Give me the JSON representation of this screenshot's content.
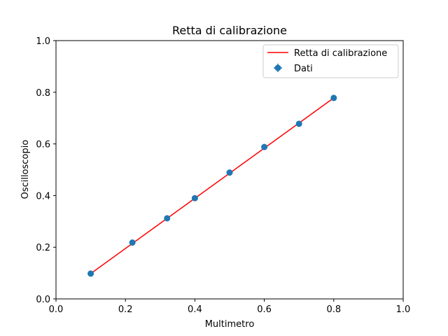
{
  "chart_data": {
    "type": "scatter",
    "title": "Retta di calibrazione",
    "xlabel": "Multimetro",
    "ylabel": "Oscilloscopio",
    "xlim": [
      0,
      1
    ],
    "ylim": [
      0,
      1
    ],
    "xticks": [
      "0.0",
      "0.2",
      "0.4",
      "0.6",
      "0.8",
      "1.0"
    ],
    "yticks": [
      "0.0",
      "0.2",
      "0.4",
      "0.6",
      "0.8",
      "1.0"
    ],
    "grid": false,
    "legend_position": "top-right",
    "series": [
      {
        "name": "Dati",
        "kind": "errorbar-points",
        "color": "#1f77b4",
        "x": [
          0.1,
          0.22,
          0.32,
          0.4,
          0.5,
          0.6,
          0.7,
          0.8
        ],
        "y": [
          0.098,
          0.218,
          0.312,
          0.39,
          0.489,
          0.588,
          0.678,
          0.778
        ]
      },
      {
        "name": "Retta di calibrazione",
        "kind": "line",
        "color": "#ff0000",
        "x": [
          0.1,
          0.8
        ],
        "y": [
          0.098,
          0.778
        ]
      }
    ]
  }
}
